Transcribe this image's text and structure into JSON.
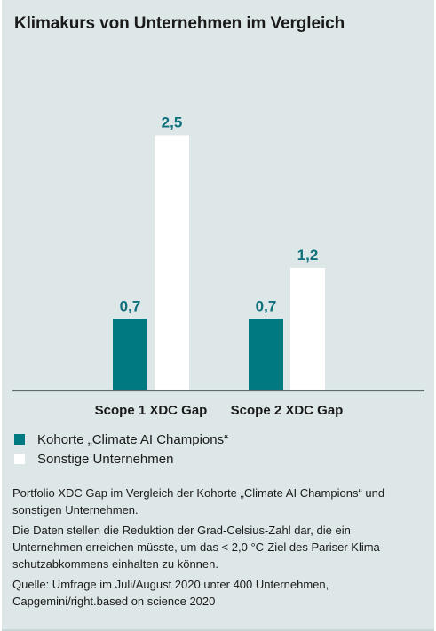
{
  "title": "Klimakurs von Unternehmen im Vergleich",
  "colors": {
    "background": "#dde7e8",
    "series_1": "#007a80",
    "series_2": "#ffffff",
    "label": "#0f6f7a",
    "axis": "#5f6b6d"
  },
  "chart_data": {
    "type": "bar",
    "categories": [
      "Scope 1 XDC Gap",
      "Scope 2 XDC Gap"
    ],
    "series": [
      {
        "name": "Kohorte „Climate AI Champions“",
        "values": [
          0.7,
          0.7
        ],
        "labels": [
          "0,7",
          "0,7"
        ]
      },
      {
        "name": "Sonstige Unternehmen",
        "values": [
          2.5,
          1.2
        ],
        "labels": [
          "2,5",
          "1,2"
        ]
      }
    ],
    "ylim": [
      0,
      2.8
    ],
    "grid": false,
    "legend_position": "bottom-left"
  },
  "notes": {
    "p1": "Portfolio XDC Gap im Vergleich der Kohorte „Climate AI Champions“ und sonstigen Unternehmen.",
    "p2": "Die Daten stellen die Reduktion der Grad-Celsius-Zahl dar, die ein Unternehmen erreichen müsste, um das < 2,0 °C-Ziel des Pariser Klima­schutzabkommens einhalten zu können.",
    "p3": "Quelle: Umfrage im Juli/August 2020 unter 400 Unternehmen, Capgemini/right.based on science 2020"
  }
}
